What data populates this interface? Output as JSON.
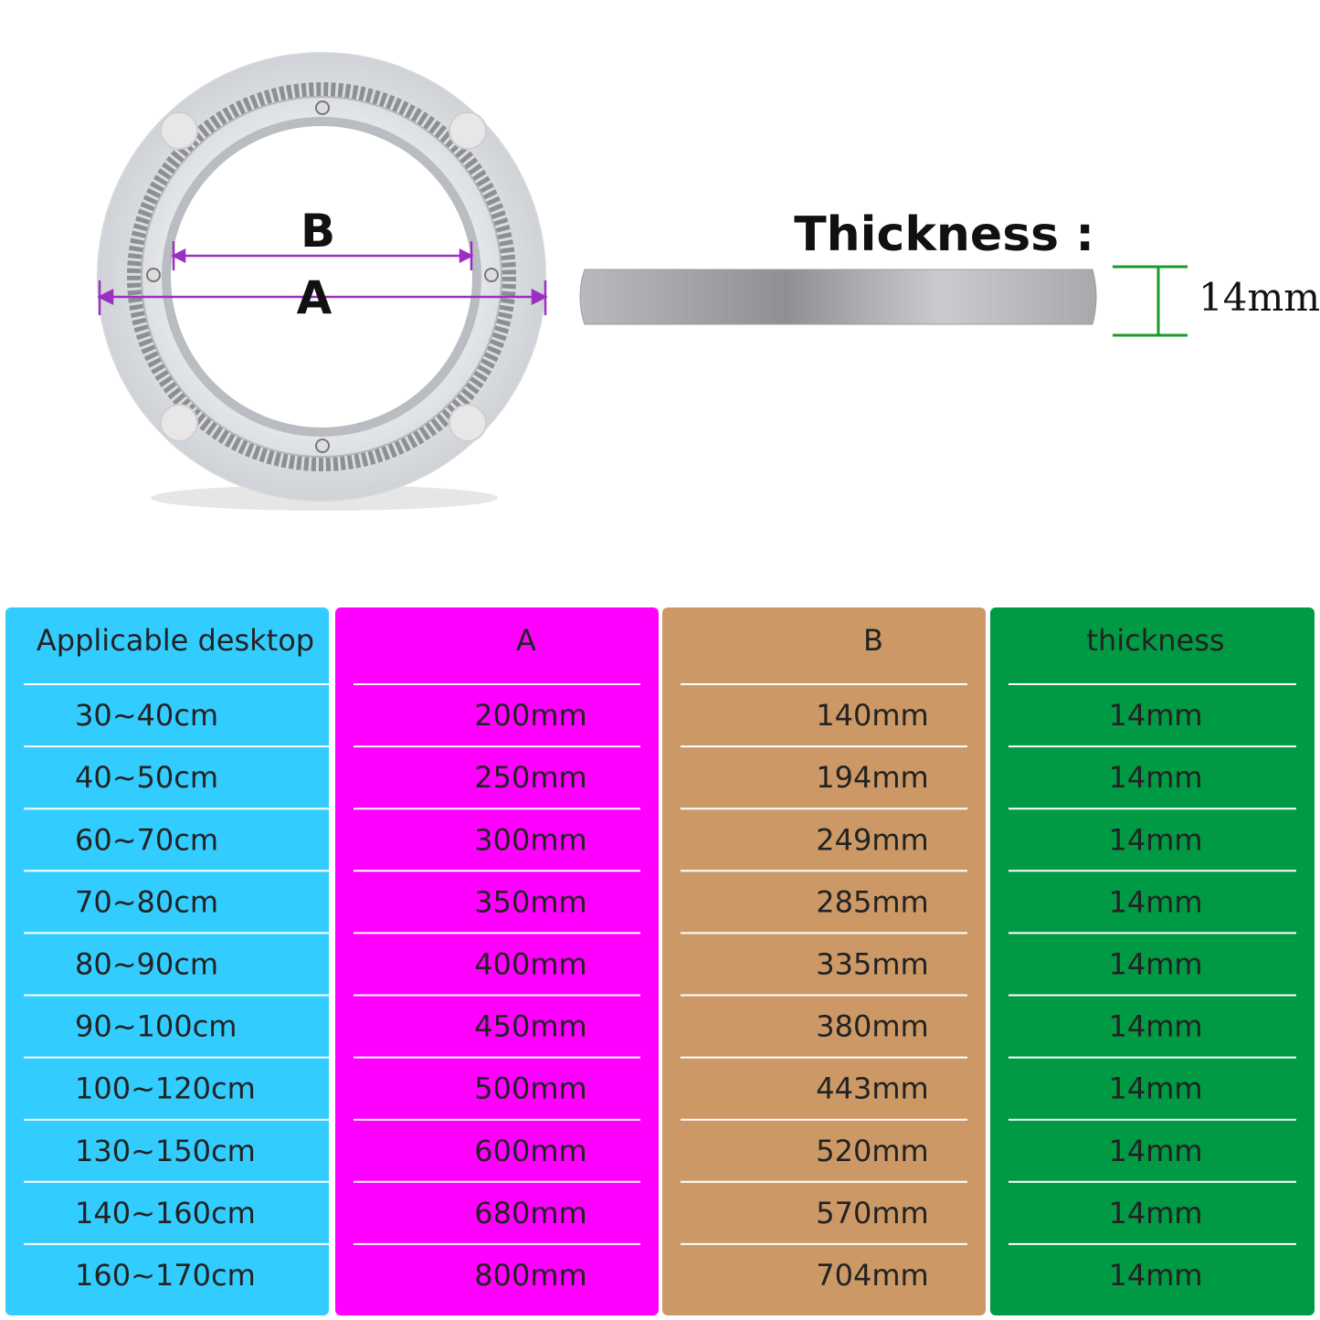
{
  "diagram": {
    "label_b": "B",
    "label_a": "A",
    "thickness_label": "Thickness :",
    "thickness_value": "14mm"
  },
  "table": {
    "header": [
      "Applicable desktop",
      "A",
      "B",
      "thickness"
    ],
    "rows": [
      [
        "30~40cm",
        "200mm",
        "140mm",
        "14mm"
      ],
      [
        "40~50cm",
        "250mm",
        "194mm",
        "14mm"
      ],
      [
        "60~70cm",
        "300mm",
        "249mm",
        "14mm"
      ],
      [
        "70~80cm",
        "350mm",
        "285mm",
        "14mm"
      ],
      [
        "80~90cm",
        "400mm",
        "335mm",
        "14mm"
      ],
      [
        "90~100cm",
        "450mm",
        "380mm",
        "14mm"
      ],
      [
        "100~120cm",
        "500mm",
        "443mm",
        "14mm"
      ],
      [
        "130~150cm",
        "600mm",
        "520mm",
        "14mm"
      ],
      [
        "140~160cm",
        "680mm",
        "570mm",
        "14mm"
      ],
      [
        "160~170cm",
        "800mm",
        "704mm",
        "14mm"
      ]
    ]
  }
}
